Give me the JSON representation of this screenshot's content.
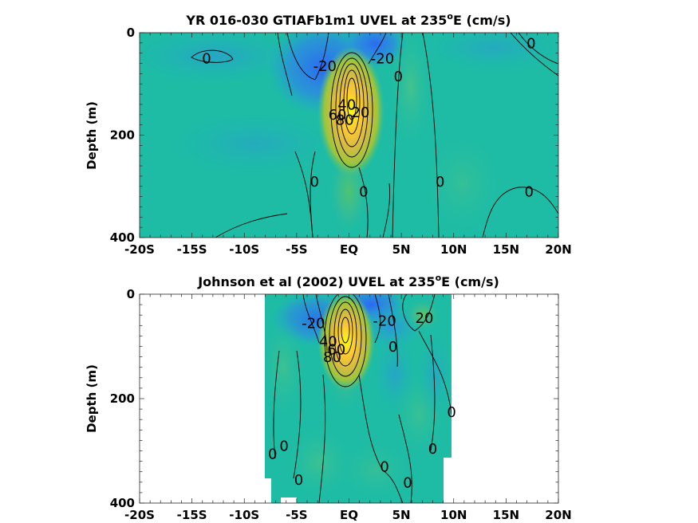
{
  "chart_data": [
    {
      "type": "heatmap",
      "subtype": "filled-contour",
      "title_main": "YR 016-030 GTIAFb1m1 UVEL at 235",
      "title_sup": "o",
      "title_end": "E (cm/s)",
      "ylabel": "Depth (m)",
      "xlabel": "",
      "xlim": [
        -20,
        20
      ],
      "ylim": [
        0,
        400
      ],
      "y_reversed": true,
      "x_ticks": [
        -20,
        -15,
        -10,
        -5,
        0,
        5,
        10,
        15,
        20
      ],
      "x_tick_labels": [
        "-20S",
        "-15S",
        "-10S",
        "-5S",
        "EQ",
        "5N",
        "10N",
        "15N",
        "20N"
      ],
      "y_ticks": [
        0,
        200,
        400
      ],
      "y_tick_labels": [
        "0",
        "200",
        "400"
      ],
      "colormap": "parula",
      "contour_interval_cm_s": 10,
      "data_extent_lat": [
        -20,
        20
      ],
      "data_extent_depth": [
        0,
        390
      ],
      "features": [
        {
          "kind": "eastward core (EUC)",
          "lat": 0.5,
          "depth": 130,
          "value_cm_s": 90
        },
        {
          "kind": "westward SEC",
          "lat": -2,
          "depth": 40,
          "value_cm_s": -40
        },
        {
          "kind": "westward SEC",
          "lat": 3,
          "depth": 20,
          "value_cm_s": -30
        },
        {
          "kind": "westward",
          "lat": -4,
          "depth": 150,
          "value_cm_s": -15
        },
        {
          "kind": "eastward NECC",
          "lat": 6,
          "depth": 60,
          "value_cm_s": 20
        }
      ],
      "contour_labels": [
        {
          "text": "0",
          "lat": -13.6,
          "depth": 60
        },
        {
          "text": "-20",
          "lat": -2.3,
          "depth": 75
        },
        {
          "text": "-20",
          "lat": 3.2,
          "depth": 60
        },
        {
          "text": "0",
          "lat": 4.7,
          "depth": 95
        },
        {
          "text": "0",
          "lat": 17.4,
          "depth": 30
        },
        {
          "text": "40",
          "lat": -0.2,
          "depth": 150
        },
        {
          "text": "60",
          "lat": -1.1,
          "depth": 170
        },
        {
          "text": "80",
          "lat": -0.4,
          "depth": 180
        },
        {
          "text": "20",
          "lat": 1.1,
          "depth": 165
        },
        {
          "text": "0",
          "lat": -3.3,
          "depth": 300
        },
        {
          "text": "0",
          "lat": 1.4,
          "depth": 320
        },
        {
          "text": "0",
          "lat": 8.7,
          "depth": 300
        },
        {
          "text": "0",
          "lat": 17.2,
          "depth": 320
        }
      ]
    },
    {
      "type": "heatmap",
      "subtype": "filled-contour",
      "title_main": "Johnson et al (2002) UVEL at 235",
      "title_sup": "o",
      "title_end": "E (cm/s)",
      "ylabel": "Depth (m)",
      "xlabel": "",
      "xlim": [
        -20,
        20
      ],
      "ylim": [
        0,
        400
      ],
      "y_reversed": true,
      "x_ticks": [
        -20,
        -15,
        -10,
        -5,
        0,
        5,
        10,
        15,
        20
      ],
      "x_tick_labels": [
        "-20S",
        "-15S",
        "-10S",
        "-5S",
        "EQ",
        "5N",
        "10N",
        "15N",
        "20N"
      ],
      "y_ticks": [
        0,
        200,
        400
      ],
      "y_tick_labels": [
        "0",
        "200",
        "400"
      ],
      "colormap": "parula",
      "contour_interval_cm_s": 10,
      "data_extent_lat": [
        -8,
        10
      ],
      "data_extent_depth": [
        0,
        400
      ],
      "features": [
        {
          "kind": "eastward core (EUC)",
          "lat": 0,
          "depth": 100,
          "value_cm_s": 90
        },
        {
          "kind": "westward SEC",
          "lat": 1.5,
          "depth": 10,
          "value_cm_s": -40
        },
        {
          "kind": "westward SEC",
          "lat": -3,
          "depth": 40,
          "value_cm_s": -30
        },
        {
          "kind": "westward",
          "lat": 5,
          "depth": 40,
          "value_cm_s": -25
        },
        {
          "kind": "eastward NECC",
          "lat": 7.5,
          "depth": 30,
          "value_cm_s": 25
        }
      ],
      "contour_labels": [
        {
          "text": "-20",
          "lat": -3.4,
          "depth": 65
        },
        {
          "text": "-20",
          "lat": 3.4,
          "depth": 60
        },
        {
          "text": "20",
          "lat": 7.2,
          "depth": 55
        },
        {
          "text": "0",
          "lat": 4.2,
          "depth": 110
        },
        {
          "text": "40",
          "lat": -2.0,
          "depth": 100
        },
        {
          "text": "60",
          "lat": -1.2,
          "depth": 115
        },
        {
          "text": "80",
          "lat": -1.6,
          "depth": 130
        },
        {
          "text": "0",
          "lat": 9.8,
          "depth": 235
        },
        {
          "text": "0",
          "lat": -6.2,
          "depth": 300
        },
        {
          "text": "0",
          "lat": -7.3,
          "depth": 315
        },
        {
          "text": "0",
          "lat": 8.0,
          "depth": 305
        },
        {
          "text": "0",
          "lat": 3.4,
          "depth": 340
        },
        {
          "text": "0",
          "lat": -4.8,
          "depth": 365
        },
        {
          "text": "0",
          "lat": 5.6,
          "depth": 370
        }
      ]
    }
  ]
}
